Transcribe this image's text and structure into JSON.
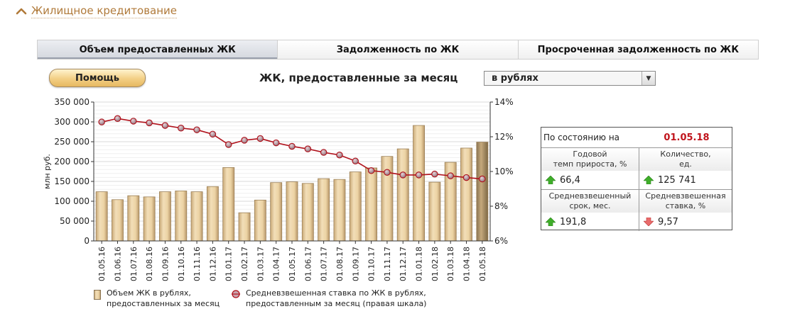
{
  "header": {
    "title": "Жилищное кредитование"
  },
  "tabs": [
    {
      "label": "Объем предоставленных ЖК",
      "active": true
    },
    {
      "label": "Задолженность по ЖК",
      "active": false
    },
    {
      "label": "Просроченная задолженность по ЖК",
      "active": false
    }
  ],
  "toolbar": {
    "help_label": "Помощь",
    "chart_title": "ЖК, предоставленные за месяц",
    "currency_select": "в рублях"
  },
  "colors": {
    "accent": "#b07a3a",
    "bar": "#e8cfa2",
    "line": "#b0101a",
    "date": "#c0141c",
    "up": "#3fae2a",
    "down": "#e05a5a"
  },
  "chart_data": {
    "type": "bar",
    "categories": [
      "01.05.16",
      "01.06.16",
      "01.07.16",
      "01.08.16",
      "01.09.16",
      "01.10.16",
      "01.11.16",
      "01.12.16",
      "01.01.17",
      "01.02.17",
      "01.03.17",
      "01.04.17",
      "01.05.17",
      "01.06.17",
      "01.07.17",
      "01.08.17",
      "01.09.17",
      "01.10.17",
      "01.11.17",
      "01.12.17",
      "01.01.18",
      "01.02.18",
      "01.03.18",
      "01.04.18",
      "01.05.18"
    ],
    "series": [
      {
        "name": "Объем ЖК в рублях, предоставленных за месяц",
        "type": "bar",
        "axis": "left",
        "values": [
          124000,
          104000,
          114000,
          111000,
          124000,
          126000,
          124000,
          137000,
          185000,
          71000,
          103000,
          147000,
          149000,
          145000,
          157000,
          155000,
          174000,
          184000,
          213000,
          232000,
          291000,
          148000,
          198000,
          234000,
          249000
        ]
      },
      {
        "name": "Средневзвешенная ставка по ЖК в рублях, предоставленным за месяц (правая шкала)",
        "type": "line",
        "axis": "right",
        "values": [
          12.85,
          13.05,
          12.9,
          12.8,
          12.65,
          12.5,
          12.4,
          12.15,
          11.55,
          11.8,
          11.9,
          11.65,
          11.45,
          11.3,
          11.1,
          10.95,
          10.6,
          10.05,
          9.95,
          9.8,
          9.8,
          9.85,
          9.75,
          9.65,
          9.57
        ]
      }
    ],
    "ylabel": "млн руб.",
    "ylim": [
      0,
      350000
    ],
    "yticks": [
      "0",
      "50 000",
      "100 000",
      "150 000",
      "200 000",
      "250 000",
      "300 000",
      "350 000"
    ],
    "y2lim": [
      6,
      14
    ],
    "y2ticks": [
      "6%",
      "8%",
      "10%",
      "12%",
      "14%"
    ],
    "grid": true,
    "legend_position": "bottom"
  },
  "info": {
    "as_of_label": "По состоянию на",
    "as_of_date": "01.05.18",
    "growth_caption_1": "Годовой",
    "growth_caption_2": "темп прироста, %",
    "growth_value": "66,4",
    "growth_trend": "up-arrow-icon",
    "count_caption_1": "Количество,",
    "count_caption_2": "ед.",
    "count_value": "125 741",
    "count_trend": "up-arrow-icon",
    "term_caption_1": "Средневзвешенный",
    "term_caption_2": "срок, мес.",
    "term_value": "191,8",
    "term_trend": "up-arrow-icon",
    "rate_caption_1": "Средневзвешенная",
    "rate_caption_2": "ставка, %",
    "rate_value": "9,57",
    "rate_trend": "down-arrow-icon"
  },
  "legend": {
    "bar_label_1": "Объем ЖК в рублях,",
    "bar_label_2": "предоставленных за месяц",
    "line_label_1": "Средневзвешенная ставка по ЖК  в рублях,",
    "line_label_2": "предоставленным за месяц (правая шкала)"
  }
}
